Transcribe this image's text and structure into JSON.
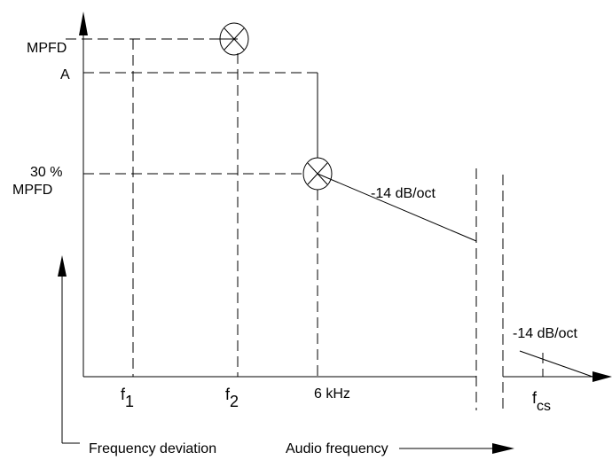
{
  "y_labels": {
    "mpfd": "MPFD",
    "a": "A",
    "pct30_line1": "30 %",
    "pct30_line2": "MPFD"
  },
  "slope_labels": {
    "upper": "-14 dB/oct",
    "lower": "-14 dB/oct"
  },
  "x_labels": {
    "f1_base": "f",
    "f1_sub": "1",
    "f2_base": "f",
    "f2_sub": "2",
    "six_khz": "6 kHz",
    "fcs_base": "f",
    "fcs_sub": "cs"
  },
  "axis_titles": {
    "y": "Frequency deviation",
    "x": "Audio frequency"
  },
  "colors": {
    "line": "#000000",
    "dashed": "#000000",
    "background": "#ffffff"
  }
}
